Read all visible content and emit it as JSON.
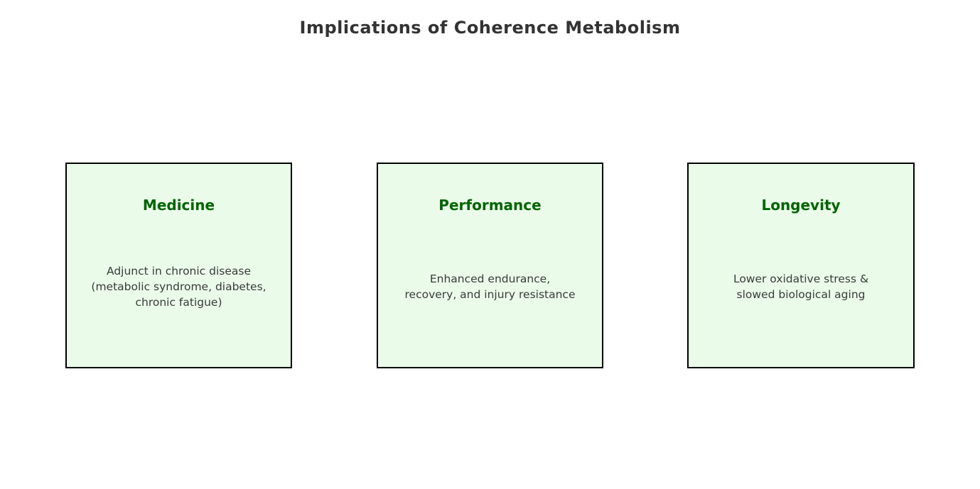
{
  "title": "Implications of Coherence Metabolism",
  "cards": [
    {
      "heading": "Medicine",
      "body": "Adjunct in chronic disease\n(metabolic syndrome, diabetes,\nchronic fatigue)"
    },
    {
      "heading": "Performance",
      "body": "Enhanced endurance,\nrecovery, and injury resistance"
    },
    {
      "heading": "Longevity",
      "body": "Lower oxidative stress &\nslowed biological aging"
    }
  ],
  "colors": {
    "card_fill": "#EAFBEA",
    "card_border": "#000000",
    "heading_text": "#006400",
    "body_text": "#3B3B3B",
    "title_text": "#333333"
  }
}
